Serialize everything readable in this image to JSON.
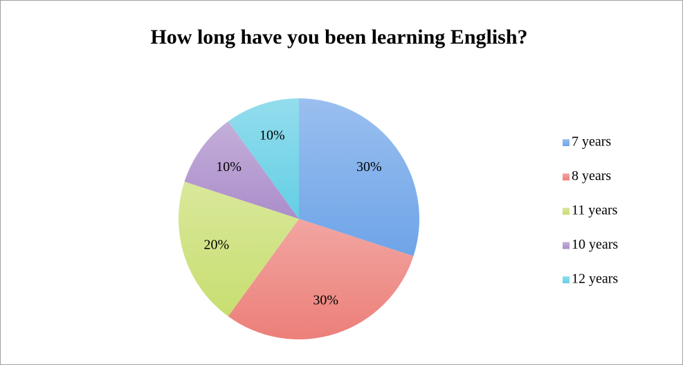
{
  "chart_data": {
    "type": "pie",
    "title": "How long have you been learning English?",
    "categories": [
      "7 years",
      "8 years",
      "11 years",
      "10 years",
      "12 years"
    ],
    "values": [
      30,
      30,
      20,
      10,
      10
    ],
    "value_labels": [
      "30%",
      "30%",
      "20%",
      "10%",
      "10%"
    ],
    "colors": [
      "#6ea4e8",
      "#ec7f79",
      "#c8de70",
      "#ab8dca",
      "#64cfe5"
    ],
    "legend": "right"
  }
}
